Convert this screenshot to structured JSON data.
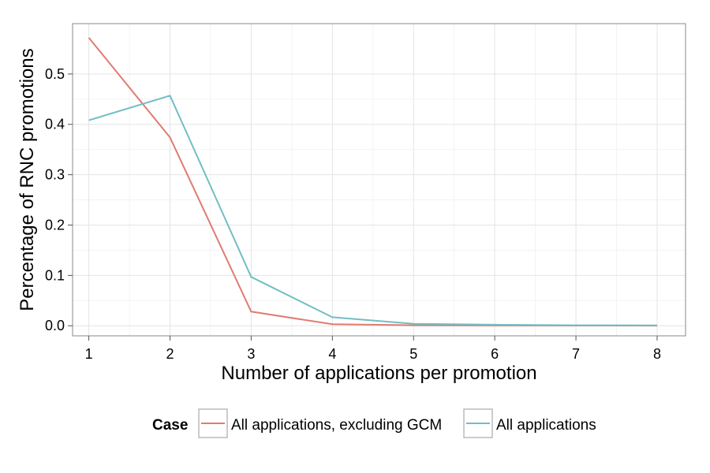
{
  "chart_data": {
    "type": "line",
    "title": "",
    "xlabel": "Number of applications per promotion",
    "ylabel": "Percentage of RNC promotions",
    "x": [
      1,
      2,
      3,
      4,
      5,
      6,
      7,
      8
    ],
    "xlim": [
      0.8,
      8.35
    ],
    "ylim": [
      -0.02,
      0.6
    ],
    "x_ticks": [
      "1",
      "2",
      "3",
      "4",
      "5",
      "6",
      "7",
      "8"
    ],
    "y_ticks": [
      "0.0",
      "0.1",
      "0.2",
      "0.3",
      "0.4",
      "0.5"
    ],
    "grid": true,
    "legend": {
      "title": "Case",
      "placement": "bottom"
    },
    "series": [
      {
        "name": "All applications, excluding GCM",
        "color": "#E07B72",
        "values": [
          0.572,
          0.374,
          0.028,
          0.003,
          0.001,
          0.0005,
          0.0003,
          0.0002
        ]
      },
      {
        "name": "All applications",
        "color": "#72BEC2",
        "values": [
          0.408,
          0.457,
          0.097,
          0.017,
          0.004,
          0.002,
          0.001,
          0.0008
        ]
      }
    ]
  }
}
